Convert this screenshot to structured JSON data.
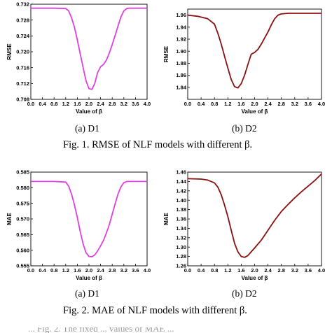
{
  "chart_data": [
    {
      "type": "line",
      "panel": "(a) D1",
      "xlabel": "Value of β",
      "ylabel": "RMSE",
      "xlim": [
        0.0,
        4.0
      ],
      "ylim": [
        0.708,
        0.732
      ],
      "xticks": [
        "0.0",
        "0.4",
        "0.8",
        "1.2",
        "1.6",
        "2.0",
        "2.4",
        "2.8",
        "3.2",
        "3.6",
        "4.0"
      ],
      "yticks": [
        "0.708",
        "0.712",
        "0.716",
        "0.720",
        "0.724",
        "0.728",
        "0.732"
      ],
      "color": "#e040e0",
      "x": [
        0.0,
        0.4,
        0.8,
        1.2,
        1.3,
        1.4,
        1.5,
        1.6,
        1.7,
        1.8,
        1.9,
        2.0,
        2.1,
        2.2,
        2.3,
        2.4,
        2.5,
        2.6,
        2.7,
        2.8,
        2.9,
        3.0,
        3.1,
        3.2,
        3.3,
        3.4,
        3.6,
        4.0
      ],
      "y": [
        0.731,
        0.731,
        0.731,
        0.7309,
        0.7303,
        0.7286,
        0.7262,
        0.723,
        0.7195,
        0.716,
        0.7127,
        0.7107,
        0.7105,
        0.712,
        0.7148,
        0.7162,
        0.7168,
        0.7179,
        0.7197,
        0.7218,
        0.7241,
        0.7265,
        0.7288,
        0.7303,
        0.7309,
        0.731,
        0.731,
        0.731
      ]
    },
    {
      "type": "line",
      "panel": "(b) D2",
      "xlabel": "Value of β",
      "ylabel": "RMSE",
      "xlim": [
        0.0,
        4.0
      ],
      "ylim": [
        1.82,
        1.97
      ],
      "xticks": [
        "0.0",
        "0.4",
        "0.8",
        "1.2",
        "1.6",
        "2.0",
        "2.4",
        "2.8",
        "3.2",
        "3.6",
        "4.0"
      ],
      "yticks": [
        "1.84",
        "1.86",
        "1.88",
        "1.90",
        "1.92",
        "1.94",
        "1.96"
      ],
      "color": "#8b1010",
      "x": [
        0.0,
        0.3,
        0.6,
        0.8,
        0.9,
        1.0,
        1.1,
        1.2,
        1.3,
        1.4,
        1.5,
        1.6,
        1.7,
        1.8,
        1.9,
        2.0,
        2.1,
        2.2,
        2.3,
        2.4,
        2.5,
        2.6,
        2.7,
        2.8,
        3.0,
        3.4,
        4.0
      ],
      "y": [
        1.96,
        1.958,
        1.954,
        1.945,
        1.93,
        1.912,
        1.892,
        1.872,
        1.853,
        1.841,
        1.839,
        1.846,
        1.86,
        1.878,
        1.895,
        1.898,
        1.903,
        1.912,
        1.922,
        1.932,
        1.944,
        1.954,
        1.96,
        1.962,
        1.963,
        1.963,
        1.963
      ]
    },
    {
      "type": "line",
      "panel": "(a) D1",
      "xlabel": "Value of β",
      "ylabel": "MAE",
      "xlim": [
        0.0,
        4.0
      ],
      "ylim": [
        0.555,
        0.585
      ],
      "xticks": [
        "0.0",
        "0.4",
        "0.8",
        "1.2",
        "1.6",
        "2.0",
        "2.4",
        "2.8",
        "3.2",
        "3.6",
        "4.0"
      ],
      "yticks": [
        "0.555",
        "0.560",
        "0.565",
        "0.570",
        "0.575",
        "0.580",
        "0.585"
      ],
      "color": "#e040e0",
      "x": [
        0.0,
        0.4,
        0.8,
        1.2,
        1.3,
        1.4,
        1.5,
        1.6,
        1.7,
        1.8,
        1.9,
        2.0,
        2.1,
        2.2,
        2.3,
        2.4,
        2.5,
        2.6,
        2.7,
        2.8,
        2.9,
        3.0,
        3.1,
        3.2,
        3.3,
        3.4,
        3.6,
        4.0
      ],
      "y": [
        0.582,
        0.582,
        0.582,
        0.5818,
        0.5805,
        0.578,
        0.5745,
        0.5705,
        0.566,
        0.562,
        0.5592,
        0.558,
        0.5579,
        0.5585,
        0.5598,
        0.5614,
        0.5632,
        0.5655,
        0.5682,
        0.5715,
        0.5748,
        0.578,
        0.5803,
        0.5816,
        0.582,
        0.582,
        0.582,
        0.582
      ]
    },
    {
      "type": "line",
      "panel": "(b) D2",
      "xlabel": "Value of β",
      "ylabel": "MAE",
      "xlim": [
        0.0,
        4.0
      ],
      "ylim": [
        1.26,
        1.46
      ],
      "xticks": [
        "0.0",
        "0.4",
        "0.8",
        "1.2",
        "1.6",
        "2.0",
        "2.4",
        "2.8",
        "3.2",
        "3.6",
        "4.0"
      ],
      "yticks": [
        "1.26",
        "1.28",
        "1.30",
        "1.32",
        "1.34",
        "1.36",
        "1.38",
        "1.40",
        "1.42",
        "1.44",
        "1.46"
      ],
      "color": "#8b1010",
      "x": [
        0.0,
        0.4,
        0.6,
        0.8,
        0.9,
        1.0,
        1.1,
        1.2,
        1.3,
        1.4,
        1.5,
        1.6,
        1.7,
        1.8,
        1.9,
        2.0,
        2.2,
        2.4,
        2.6,
        2.8,
        3.0,
        3.2,
        3.4,
        3.6,
        3.8,
        4.0
      ],
      "y": [
        1.446,
        1.445,
        1.443,
        1.437,
        1.428,
        1.412,
        1.39,
        1.365,
        1.336,
        1.308,
        1.29,
        1.28,
        1.278,
        1.282,
        1.29,
        1.298,
        1.315,
        1.336,
        1.357,
        1.376,
        1.391,
        1.405,
        1.418,
        1.43,
        1.442,
        1.456
      ]
    }
  ],
  "captions": {
    "fig1": "Fig. 1. RMSE of NLF models with different β.",
    "fig2": "Fig. 2. MAE of NLF models with different β."
  },
  "bottom_text": "... Fig. 2. The fixed ... values of MAE ..."
}
